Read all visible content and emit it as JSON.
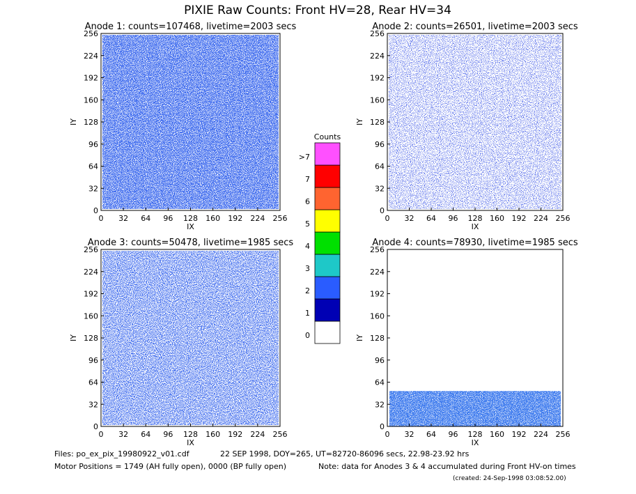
{
  "title": "PIXIE Raw Counts:  Front HV=28, Rear HV=34",
  "chart_data": [
    {
      "type": "heatmap",
      "title": "Anode 1: counts=107468, livetime=2003 secs",
      "xlabel": "IX",
      "ylabel": "IY",
      "xlim": [
        0,
        256
      ],
      "xticks": [
        0,
        32,
        64,
        96,
        128,
        160,
        192,
        224,
        256
      ],
      "ylim": [
        0,
        256
      ],
      "yticks": [
        0,
        32,
        64,
        96,
        128,
        160,
        192,
        224,
        256
      ]
    },
    {
      "type": "heatmap",
      "title": "Anode 2: counts=26501, livetime=2003 secs",
      "xlabel": "IX",
      "ylabel": "IY",
      "xlim": [
        0,
        256
      ],
      "xticks": [
        0,
        32,
        64,
        96,
        128,
        160,
        192,
        224,
        256
      ],
      "ylim": [
        0,
        256
      ],
      "yticks": [
        0,
        32,
        64,
        96,
        128,
        160,
        192,
        224,
        256
      ]
    },
    {
      "type": "heatmap",
      "title": "Anode 3: counts=50478, livetime=1985 secs",
      "xlabel": "IX",
      "ylabel": "IY",
      "xlim": [
        0,
        256
      ],
      "xticks": [
        0,
        32,
        64,
        96,
        128,
        160,
        192,
        224,
        256
      ],
      "ylim": [
        0,
        256
      ],
      "yticks": [
        0,
        32,
        64,
        96,
        128,
        160,
        192,
        224,
        256
      ]
    },
    {
      "type": "heatmap",
      "title": "Anode 4: counts=78930, livetime=1985 secs",
      "xlabel": "IX",
      "ylabel": "IY",
      "xlim": [
        0,
        256
      ],
      "xticks": [
        0,
        32,
        64,
        96,
        128,
        160,
        192,
        224,
        256
      ],
      "ylim": [
        0,
        256
      ],
      "yticks": [
        0,
        32,
        64,
        96,
        128,
        160,
        192,
        224,
        256
      ]
    }
  ],
  "colorbar": {
    "title": "Counts",
    "labels": [
      "0",
      "1",
      "2",
      "3",
      "4",
      "5",
      "6",
      "7",
      ">7"
    ],
    "colors": [
      "#ffffff",
      "#0000b4",
      "#2a5cff",
      "#1ec8c8",
      "#00e000",
      "#ffff00",
      "#ff6430",
      "#ff0000",
      "#ff50ff"
    ]
  },
  "footer": {
    "files": "Files: po_ex_pix_19980922_v01.cdf",
    "date": "22 SEP 1998, DOY=265, UT=82720-86096 secs, 22.98-23.92 hrs",
    "motor": "Motor Positions = 1749 (AH fully open), 0000 (BP fully open)",
    "note": "Note: data for Anodes 3 & 4 accumulated during Front HV-on times",
    "created": "(created: 24-Sep-1998 03:08:52.00)"
  }
}
